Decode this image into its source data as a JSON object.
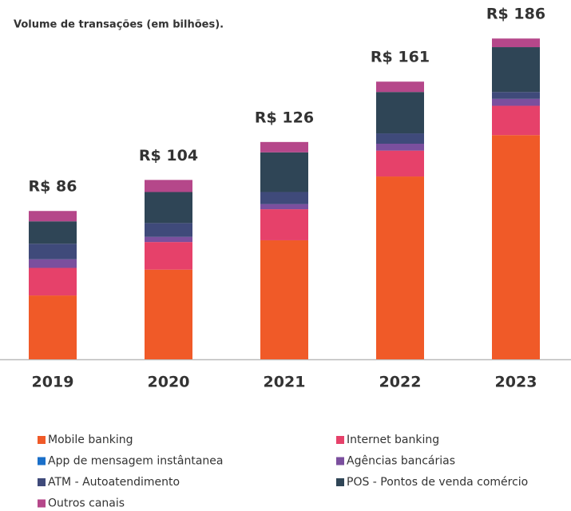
{
  "chart_data": {
    "type": "stacked_bar",
    "title": "Volume de transações (em bilhões).",
    "categories": [
      "2019",
      "2020",
      "2021",
      "2022",
      "2023"
    ],
    "series": [
      {
        "name": "Mobile banking",
        "color": "#f05a28",
        "values": [
          37,
          52,
          69,
          106,
          130
        ]
      },
      {
        "name": "Internet banking",
        "color": "#e6416a",
        "values": [
          16,
          16,
          18,
          15,
          17
        ]
      },
      {
        "name": "App de mensagem instântanea",
        "color": "#1a6fc9",
        "values": [
          0,
          0,
          0,
          0,
          0
        ]
      },
      {
        "name": "Agências bancárias",
        "color": "#7b4f9e",
        "values": [
          5,
          3,
          3,
          4,
          4
        ]
      },
      {
        "name": "ATM - Autoatendimento",
        "color": "#3f4a7a",
        "values": [
          9,
          8,
          7,
          6,
          4
        ]
      },
      {
        "name": "POS - Pontos de venda comércio",
        "color": "#2f4556",
        "values": [
          13,
          18,
          23,
          24,
          26
        ]
      },
      {
        "name": "Outros canais",
        "color": "#b5478a",
        "values": [
          6,
          7,
          6,
          6,
          5
        ]
      }
    ],
    "totals": [
      86,
      104,
      126,
      161,
      186
    ],
    "total_labels": [
      "R$ 86",
      "R$ 104",
      "R$ 126",
      "R$ 161",
      "R$ 186"
    ],
    "ylim": [
      0,
      200
    ]
  }
}
